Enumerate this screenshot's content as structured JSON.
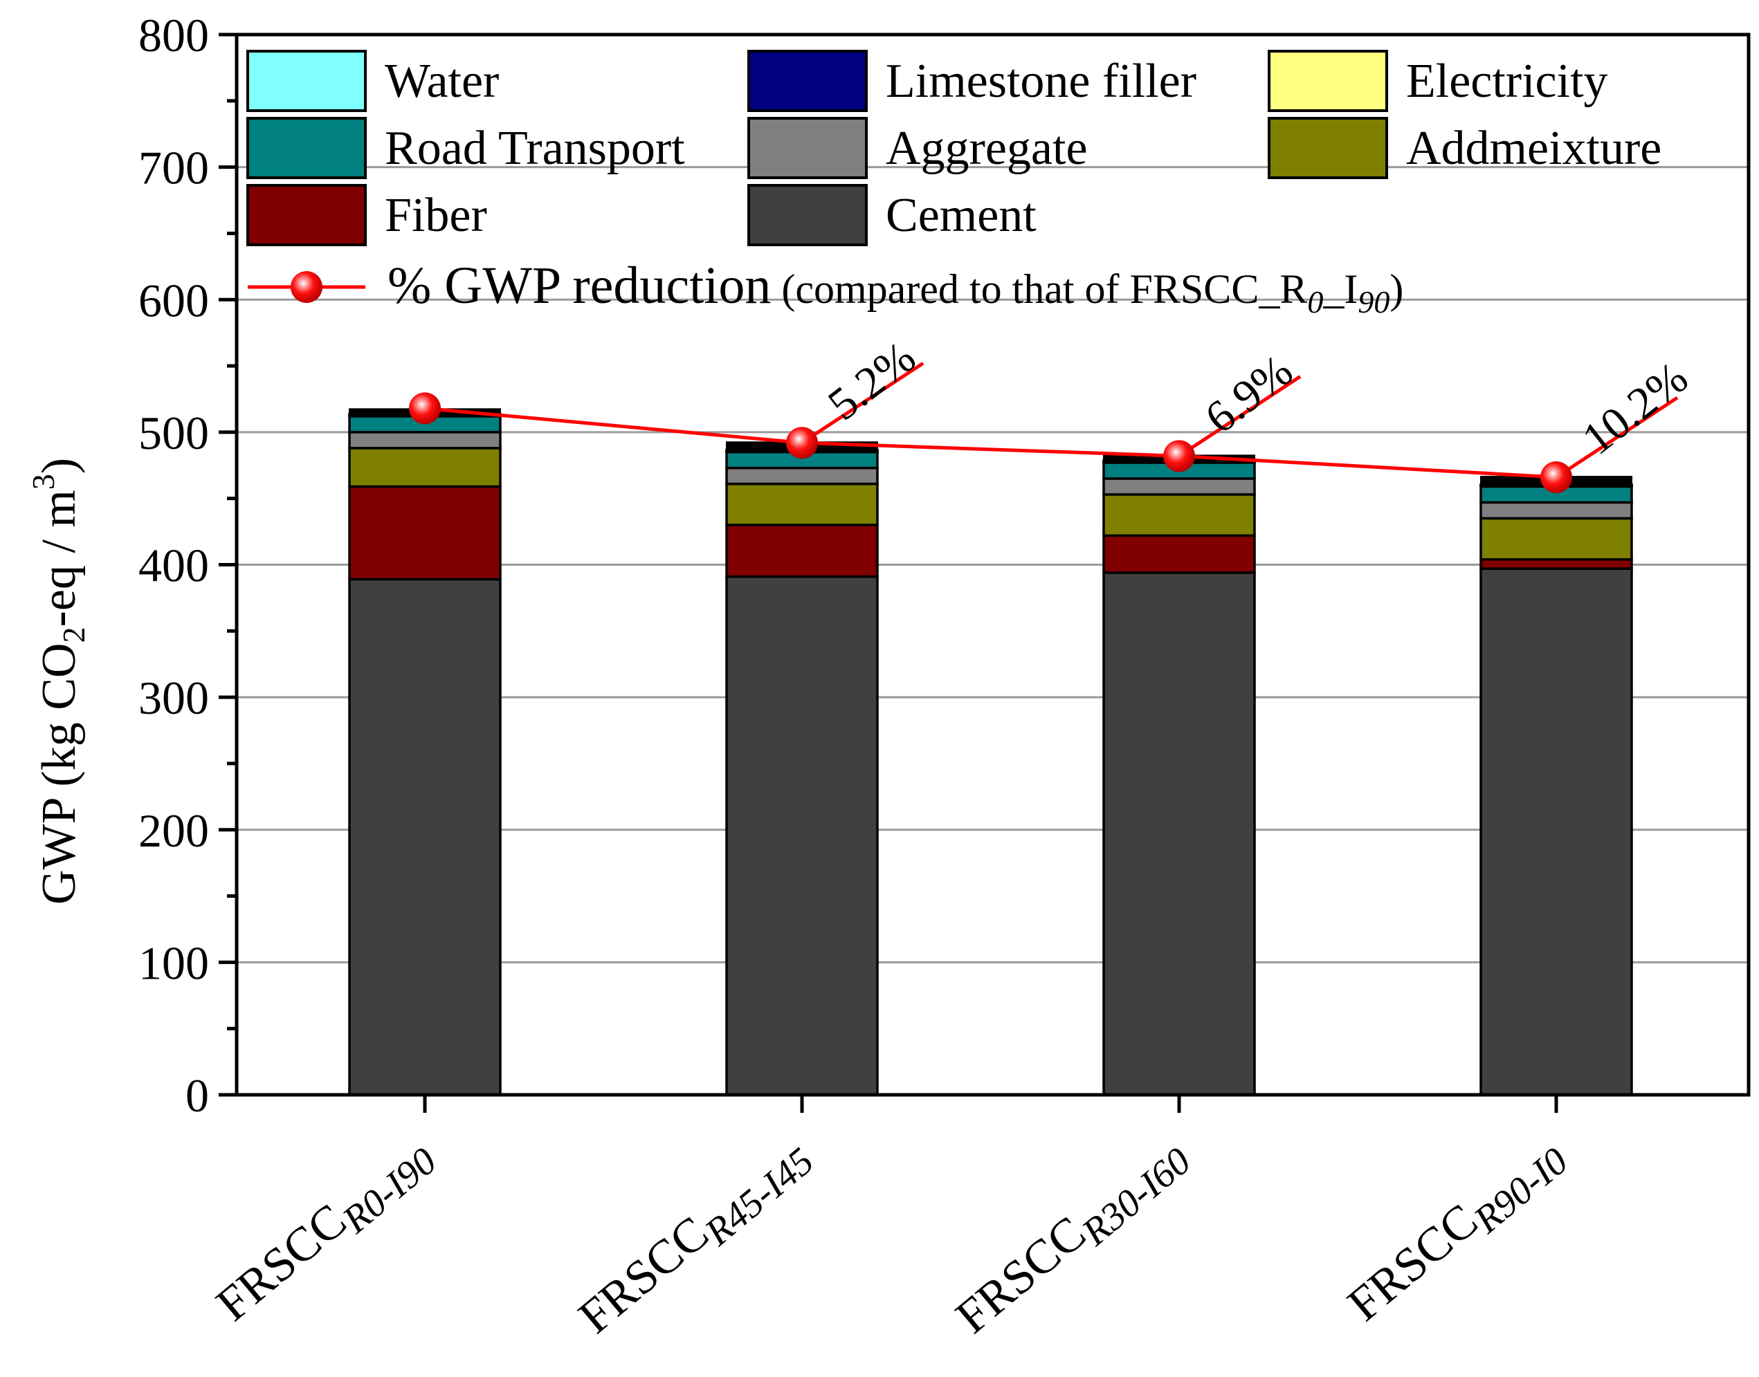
{
  "chart_data": {
    "type": "bar",
    "stacked": true,
    "ylabel_prefix": "GWP  (kg CO",
    "ylabel_sub": "2",
    "ylabel_mid": "-eq / m",
    "ylabel_sup": "3",
    "ylabel_suffix": ")",
    "ylim": [
      0,
      800
    ],
    "yticks": [
      0,
      100,
      200,
      300,
      400,
      500,
      600,
      700,
      800
    ],
    "grid": true,
    "categories": [
      {
        "main": "FRSCC",
        "sub": "R0-I90"
      },
      {
        "main": "FRSCC",
        "sub": "R45-I45"
      },
      {
        "main": "FRSCC",
        "sub": "R30-I60"
      },
      {
        "main": "FRSCC",
        "sub": "R90-I0"
      }
    ],
    "series": [
      {
        "name": "Cement",
        "color": "#404040",
        "values": [
          389,
          391,
          394,
          397
        ]
      },
      {
        "name": "Fiber",
        "color": "#800000",
        "values": [
          70,
          39,
          28,
          7
        ]
      },
      {
        "name": "Addmeixture",
        "color": "#808000",
        "values": [
          29,
          31,
          31,
          31
        ]
      },
      {
        "name": "Aggregate",
        "color": "#808080",
        "values": [
          12,
          12,
          12,
          12
        ]
      },
      {
        "name": "Road Transport",
        "color": "#008080",
        "values": [
          12,
          12,
          12,
          12
        ]
      },
      {
        "name": "Electricity",
        "color": "#ffff80",
        "values": [
          1,
          1,
          1,
          1
        ]
      },
      {
        "name": "Limestone filler",
        "color": "#000080",
        "values": [
          0,
          0,
          0,
          0
        ]
      },
      {
        "name": "Water",
        "color": "#80ffff",
        "values": [
          0.5,
          0.5,
          0.5,
          0.5
        ]
      }
    ],
    "bar_caps": [
      4,
      6,
      4,
      6
    ],
    "legend_order": [
      "Water",
      "Limestone filler",
      "Electricity",
      "Road Transport",
      "Aggregate",
      "Addmeixture",
      "Fiber",
      "Cement"
    ],
    "reduction_line": {
      "label": "% GWP reduction",
      "note_prefix": " (compared to that of FRSCC_R",
      "note_sub1": "0",
      "note_mid": "_I",
      "note_sub2": "90",
      "note_suffix": ")",
      "color": "#ff0000",
      "values": [
        518,
        492,
        482,
        466
      ],
      "annotations": [
        "",
        "5.2%",
        "6.9%",
        "10.2%"
      ]
    }
  }
}
